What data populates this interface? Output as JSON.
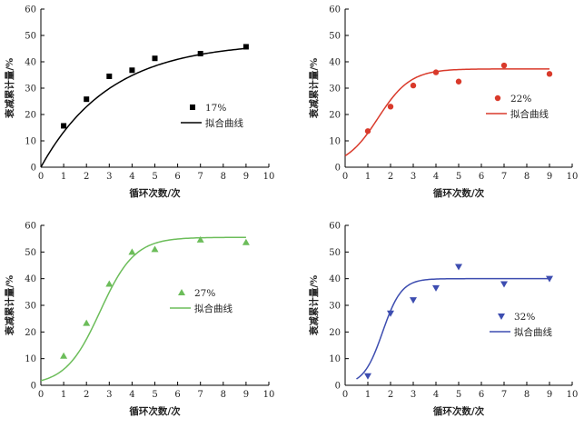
{
  "chart_data": [
    {
      "type": "scatter",
      "xlabel": "循环次数/次",
      "ylabel": "衰减累计量/%",
      "xlim": [
        0,
        10
      ],
      "ylim": [
        0,
        60
      ],
      "xticks": [
        0,
        1,
        2,
        3,
        4,
        5,
        6,
        7,
        8,
        9,
        10
      ],
      "yticks": [
        0,
        10,
        20,
        30,
        40,
        50,
        60
      ],
      "series": [
        {
          "name": "17%",
          "kind": "points",
          "marker": "square",
          "color": "#000000",
          "x": [
            1,
            2,
            3,
            4,
            5,
            7,
            9
          ],
          "y": [
            15.7,
            25.8,
            34.5,
            36.8,
            41.3,
            43.1,
            45.7
          ]
        },
        {
          "name": "拟合曲线",
          "kind": "line",
          "color": "#000000",
          "fit": {
            "form": "1-exp",
            "a": 47.5,
            "k": 0.33,
            "start": 0
          }
        }
      ]
    },
    {
      "type": "scatter",
      "xlabel": "循环次数/次",
      "ylabel": "衰减累计量/%",
      "xlim": [
        0,
        10
      ],
      "ylim": [
        0,
        60
      ],
      "xticks": [
        0,
        1,
        2,
        3,
        4,
        5,
        6,
        7,
        8,
        9,
        10
      ],
      "yticks": [
        0,
        10,
        20,
        30,
        40,
        50,
        60
      ],
      "series": [
        {
          "name": "22%",
          "kind": "points",
          "marker": "circle",
          "color": "#d93a2b",
          "x": [
            1,
            2,
            3,
            4,
            5,
            7,
            9
          ],
          "y": [
            13.7,
            23,
            31,
            36,
            32.5,
            38.6,
            35.4
          ]
        },
        {
          "name": "拟合曲线",
          "kind": "line",
          "color": "#d93a2b",
          "fit": {
            "form": "logistic",
            "a": 37.3,
            "k": 1.4,
            "x0": 1.45,
            "start": 0
          }
        }
      ]
    },
    {
      "type": "scatter",
      "xlabel": "循环次数/次",
      "ylabel": "衰减累计量/%",
      "xlim": [
        0,
        10
      ],
      "ylim": [
        0,
        60
      ],
      "xticks": [
        0,
        1,
        2,
        3,
        4,
        5,
        6,
        7,
        8,
        9,
        10
      ],
      "yticks": [
        0,
        10,
        20,
        30,
        40,
        50,
        60
      ],
      "series": [
        {
          "name": "27%",
          "kind": "points",
          "marker": "triangle-up",
          "color": "#6cbd5a",
          "x": [
            1,
            2,
            3,
            4,
            5,
            7,
            9
          ],
          "y": [
            11,
            23.3,
            38,
            50,
            51,
            54.6,
            53.6
          ]
        },
        {
          "name": "拟合曲线",
          "kind": "line",
          "color": "#6cbd5a",
          "fit": {
            "form": "logistic",
            "a": 55.5,
            "k": 1.32,
            "x0": 2.6,
            "start": 0
          }
        }
      ]
    },
    {
      "type": "scatter",
      "xlabel": "循环次数/次",
      "ylabel": "衰减累计量/%",
      "xlim": [
        0,
        10
      ],
      "ylim": [
        0,
        60
      ],
      "xticks": [
        0,
        1,
        2,
        3,
        4,
        5,
        6,
        7,
        8,
        9,
        10
      ],
      "yticks": [
        0,
        10,
        20,
        30,
        40,
        50,
        60
      ],
      "series": [
        {
          "name": "32%",
          "kind": "points",
          "marker": "triangle-down",
          "color": "#3d4db0",
          "x": [
            1,
            2,
            3,
            4,
            5,
            7,
            9
          ],
          "y": [
            3.5,
            27,
            32,
            36.5,
            44.5,
            38,
            40
          ]
        },
        {
          "name": "拟合曲线",
          "kind": "line",
          "color": "#3d4db0",
          "fit": {
            "form": "logistic",
            "a": 40,
            "k": 2.4,
            "x0": 1.65,
            "start": 0.5
          }
        }
      ]
    }
  ]
}
